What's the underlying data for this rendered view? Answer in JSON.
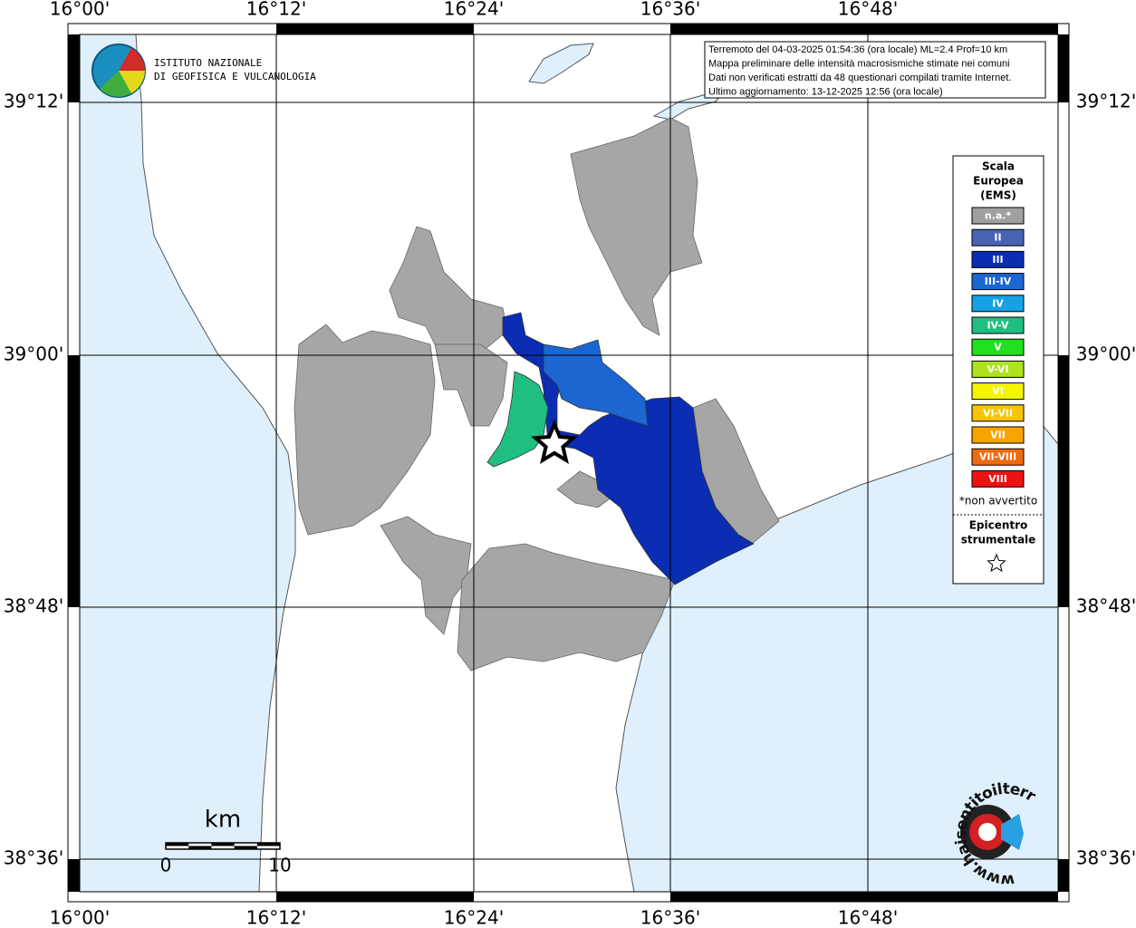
{
  "header": {
    "lines": [
      "Terremoto del 04-03-2025 01:54:36 (ora locale) ML=2.4 Prof=10 km",
      "Mappa preliminare delle intensità macrosismiche stimate nei comuni",
      "Dati non verificati estratti da 48 questionari compilati tramite Internet.",
      "Ultimo aggiornamento: 13-12-2025 12:56 (ora locale)"
    ]
  },
  "logo": {
    "line1": "ISTITUTO NAZIONALE",
    "line2": "DI GEOFISICA E VULCANOLOGIA"
  },
  "site_logo": {
    "text": "www.haisentitoilterremoto.it"
  },
  "axes": {
    "longitudes": [
      "16°00'",
      "16°12'",
      "16°24'",
      "16°36'",
      "16°48'"
    ],
    "latitudes": [
      "39°12'",
      "39°00'",
      "38°48'",
      "38°36'"
    ]
  },
  "legend": {
    "title_lines": [
      "Scala",
      "Europea",
      "(EMS)"
    ],
    "items": [
      {
        "label": "n.a.*",
        "color": "#a0a0a0"
      },
      {
        "label": "II",
        "color": "#4863b4"
      },
      {
        "label": "III",
        "color": "#0a2db4"
      },
      {
        "label": "III-IV",
        "color": "#1c66d2"
      },
      {
        "label": "IV",
        "color": "#16a2e6"
      },
      {
        "label": "IV-V",
        "color": "#1fbf82"
      },
      {
        "label": "V",
        "color": "#20e020"
      },
      {
        "label": "V-VI",
        "color": "#aee21e"
      },
      {
        "label": "VI",
        "color": "#f4f400"
      },
      {
        "label": "VI-VII",
        "color": "#f8c400"
      },
      {
        "label": "VII",
        "color": "#f8a400"
      },
      {
        "label": "VII-VIII",
        "color": "#f06a10"
      },
      {
        "label": "VIII",
        "color": "#ee1212"
      }
    ],
    "note": "*non avvertito",
    "epicenter_lines": [
      "Epicentro",
      "strumentale"
    ]
  },
  "scale_bar": {
    "unit": "km",
    "start": "0",
    "end": "10"
  }
}
